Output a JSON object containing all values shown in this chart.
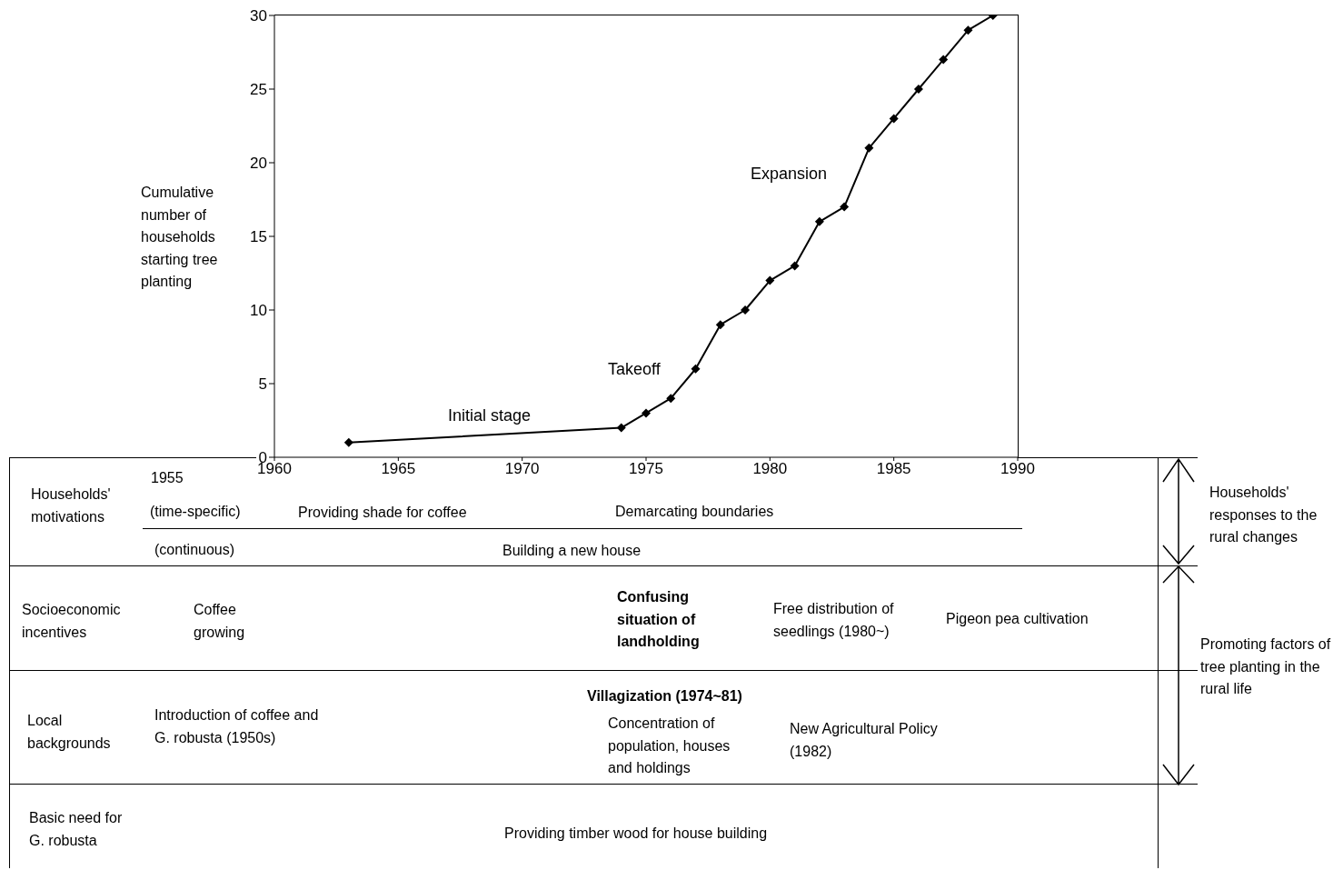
{
  "chart_data": {
    "type": "line",
    "ylabel": "Cumulative number of households starting tree planting",
    "x": [
      1963,
      1974,
      1975,
      1976,
      1977,
      1978,
      1979,
      1980,
      1981,
      1982,
      1983,
      1984,
      1985,
      1986,
      1987,
      1988,
      1989
    ],
    "values": [
      1,
      2,
      3,
      4,
      6,
      9,
      10,
      12,
      13,
      16,
      17,
      21,
      23,
      25,
      27,
      29,
      30
    ],
    "color": "#000000",
    "marker": "diamond",
    "line_style": "solid",
    "grid": false,
    "xlim": [
      1960,
      1990
    ],
    "xticks": [
      1960,
      1965,
      1970,
      1975,
      1980,
      1985,
      1990
    ],
    "ylim": [
      0,
      30
    ],
    "yticks": [
      0,
      5,
      10,
      15,
      20,
      25,
      30
    ],
    "annotations": [
      "Initial stage",
      "Takeoff",
      "Expansion",
      "1955",
      "Households' motivations",
      "(time-specific)",
      "Providing shade for coffee",
      "Demarcating boundaries",
      "(continuous)",
      "Building a new house",
      "Socioeconomic incentives",
      "Coffee growing",
      "Confusing situation of landholding",
      "Free distribution of seedlings (1980~)",
      "Pigeon pea cultivation",
      "Local backgrounds",
      "Introduction of coffee and G. robusta (1950s)",
      "Villagization (1974~81)",
      "Concentration of population, houses and holdings",
      "New Agricultural Policy (1982)",
      "Basic need for G. robusta",
      "Providing timber wood for house building",
      "Households' responses to the rural changes",
      "Promoting factors of tree planting in the rural life"
    ]
  }
}
